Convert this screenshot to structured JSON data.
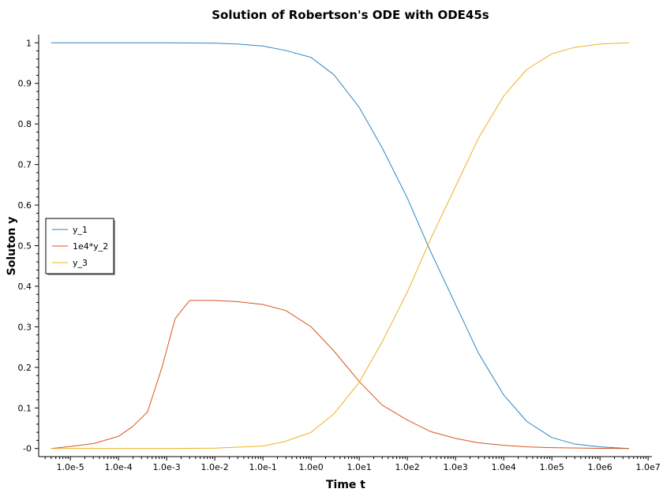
{
  "chart_data": {
    "type": "line",
    "title": "Solution of Robertson's ODE with ODE45s",
    "xlabel": "Time t",
    "ylabel": "Soluton y",
    "x_scale": "log",
    "xlim": [
      2.2e-06,
      12000000.0
    ],
    "ylim": [
      -0.02,
      1.02
    ],
    "x_ticks": [
      1e-05,
      0.0001,
      0.001,
      0.01,
      0.1,
      1.0,
      10.0,
      100.0,
      1000.0,
      10000.0,
      100000.0,
      1000000.0,
      10000000.0
    ],
    "x_tick_labels": [
      "1.0e-5",
      "1.0e-4",
      "1.0e-3",
      "1.0e-2",
      "1.0e-1",
      "1.0e0",
      "1.0e1",
      "1.0e2",
      "1.0e3",
      "1.0e4",
      "1.0e5",
      "1.0e6",
      "1.0e7"
    ],
    "y_ticks": [
      0,
      0.1,
      0.2,
      0.3,
      0.4,
      0.5,
      0.6,
      0.7,
      0.8,
      0.9,
      1
    ],
    "y_tick_labels": [
      "-0",
      "0.1",
      "0.2",
      "0.3",
      "0.4",
      "0.5",
      "0.6",
      "0.7",
      "0.8",
      "0.9",
      "1"
    ],
    "grid": false,
    "legend_position": "left-middle",
    "series": [
      {
        "name": "y_1",
        "color": "#2e86c1",
        "x": [
          4e-06,
          0.001,
          0.01,
          0.03,
          0.1,
          0.3,
          1,
          3,
          10,
          30,
          100,
          300,
          1000,
          3000,
          10000.0,
          30000.0,
          100000.0,
          300000.0,
          1000000.0,
          4000000.0
        ],
        "y": [
          1.0,
          1.0,
          0.999,
          0.997,
          0.992,
          0.981,
          0.964,
          0.921,
          0.841,
          0.741,
          0.617,
          0.487,
          0.355,
          0.235,
          0.132,
          0.067,
          0.027,
          0.011,
          0.004,
          0.0
        ]
      },
      {
        "name": "1e4*y_2",
        "color": "#d9541e",
        "x": [
          4e-06,
          1e-05,
          3e-05,
          0.0001,
          0.0002,
          0.0004,
          0.0008,
          0.0015,
          0.003,
          0.01,
          0.03,
          0.1,
          0.3,
          1,
          3,
          10,
          30,
          100,
          300,
          1000,
          3000,
          10000.0,
          30000.0,
          100000.0,
          1000000.0,
          4000000.0
        ],
        "y": [
          0.0,
          0.005,
          0.012,
          0.03,
          0.055,
          0.09,
          0.2,
          0.32,
          0.365,
          0.365,
          0.362,
          0.355,
          0.34,
          0.3,
          0.24,
          0.165,
          0.107,
          0.07,
          0.042,
          0.025,
          0.014,
          0.008,
          0.004,
          0.002,
          0.0005,
          0.0
        ]
      },
      {
        "name": "y_3",
        "color": "#edb120",
        "x": [
          4e-06,
          0.001,
          0.01,
          0.1,
          0.3,
          1,
          3,
          10,
          30,
          100,
          300,
          1000,
          3000,
          10000.0,
          30000.0,
          100000.0,
          300000.0,
          1000000.0,
          4000000.0
        ],
        "y": [
          0.0,
          0.0,
          0.001,
          0.006,
          0.018,
          0.04,
          0.086,
          0.163,
          0.263,
          0.386,
          0.515,
          0.646,
          0.765,
          0.869,
          0.934,
          0.973,
          0.989,
          0.997,
          1.0
        ]
      }
    ]
  }
}
